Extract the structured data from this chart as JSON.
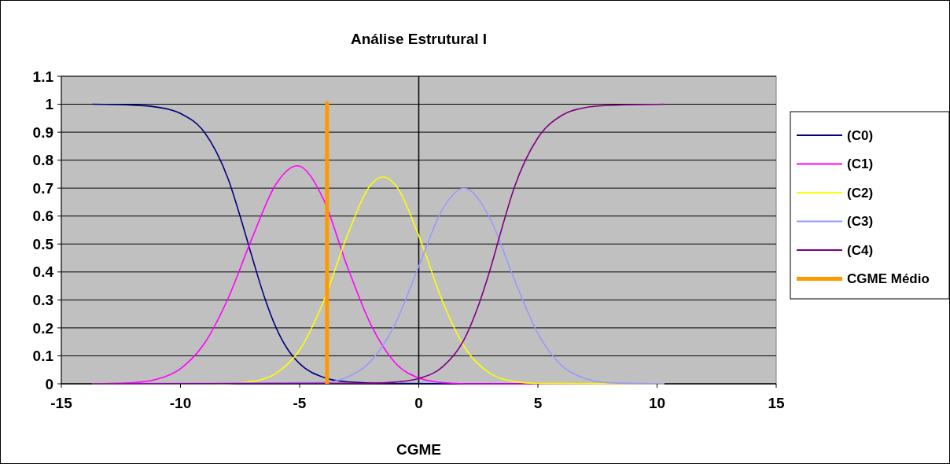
{
  "chart_data": {
    "type": "line",
    "title": "Análise Estrutural I",
    "xlabel": "CGME",
    "xlim": [
      -15,
      15
    ],
    "xticks": [
      -15,
      -10,
      -5,
      0,
      5,
      10,
      15
    ],
    "ylim": [
      0,
      1.1
    ],
    "yticks": [
      0,
      0.1,
      0.2,
      0.3,
      0.4,
      0.5,
      0.6,
      0.7,
      0.8,
      0.9,
      1,
      1.1
    ],
    "grid": "y",
    "legend": "right",
    "line_style": "solid",
    "ref_lines": [
      {
        "axis": "x",
        "value": 0,
        "color": "#000000"
      }
    ],
    "series": [
      {
        "name": "(C0)",
        "color": "#000080",
        "x": [
          -13.7,
          -12,
          -11,
          -10,
          -9,
          -8.5,
          -8,
          -7.5,
          -7,
          -6.5,
          -6,
          -5.5,
          -5,
          -4,
          -3,
          -1,
          2,
          10.3
        ],
        "values": [
          1,
          0.997,
          0.99,
          0.967,
          0.9,
          0.83,
          0.733,
          0.6,
          0.455,
          0.316,
          0.203,
          0.123,
          0.072,
          0.023,
          0.007,
          0.001,
          0,
          0
        ]
      },
      {
        "name": "(C1)",
        "color": "#ff00ff",
        "x": [
          -13.7,
          -12,
          -11,
          -10,
          -9,
          -8,
          -7,
          -6,
          -5.1,
          -4,
          -3,
          -2,
          -1,
          0,
          1,
          2,
          10.3
        ],
        "values": [
          0,
          0.004,
          0.016,
          0.054,
          0.144,
          0.306,
          0.52,
          0.713,
          0.78,
          0.66,
          0.42,
          0.21,
          0.076,
          0.021,
          0.004,
          0,
          0
        ]
      },
      {
        "name": "(C2)",
        "color": "#ffff00",
        "x": [
          -13.7,
          -8,
          -7,
          -6,
          -5,
          -4,
          -3,
          -2,
          -1.5,
          -1,
          0,
          1,
          2,
          3,
          4,
          5,
          10.3
        ],
        "values": [
          0,
          0.001,
          0.008,
          0.037,
          0.121,
          0.294,
          0.53,
          0.713,
          0.74,
          0.713,
          0.53,
          0.294,
          0.121,
          0.037,
          0.008,
          0.001,
          0
        ]
      },
      {
        "name": "(C3)",
        "color": "#9999ff",
        "x": [
          -13.7,
          -4,
          -3,
          -2,
          -1,
          0,
          1,
          1.9,
          3,
          4,
          5,
          6,
          7,
          8,
          10.3
        ],
        "values": [
          0,
          0.005,
          0.024,
          0.082,
          0.213,
          0.42,
          0.625,
          0.7,
          0.59,
          0.375,
          0.18,
          0.065,
          0.018,
          0.004,
          0
        ]
      },
      {
        "name": "(C4)",
        "color": "#800080",
        "x": [
          -13.7,
          -2,
          -1,
          0,
          1,
          2,
          2.5,
          3,
          3.5,
          4,
          5,
          6,
          7,
          8,
          10.3
        ],
        "values": [
          0,
          0.002,
          0.006,
          0.019,
          0.061,
          0.175,
          0.279,
          0.41,
          0.56,
          0.7,
          0.88,
          0.96,
          0.988,
          0.996,
          1
        ]
      },
      {
        "name": "CGME Médio",
        "color": "#ff9900",
        "x": [
          -3.85,
          -3.85
        ],
        "values": [
          0,
          1.01
        ]
      }
    ]
  }
}
